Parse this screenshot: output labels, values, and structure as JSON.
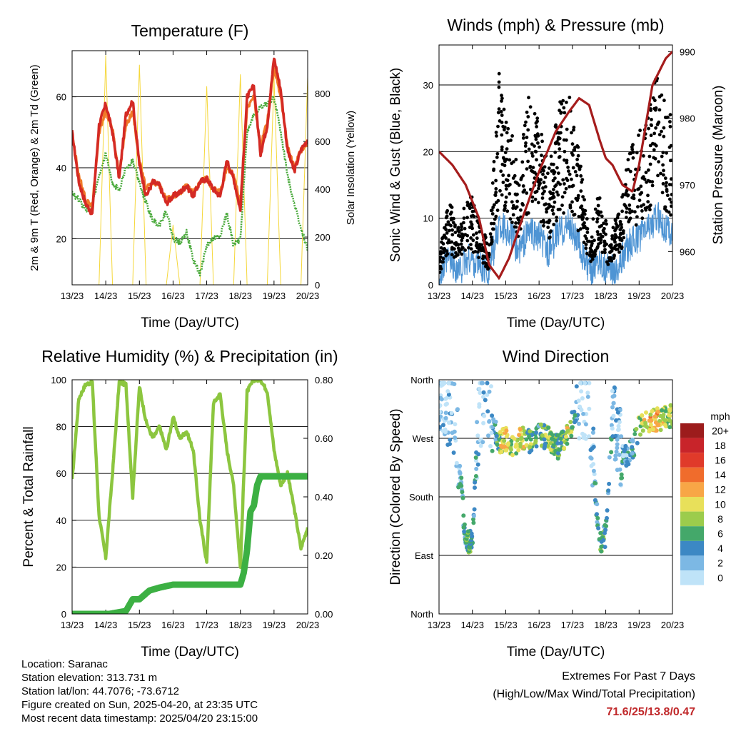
{
  "chart_data": [
    {
      "type": "line",
      "title": "Temperature (F)",
      "xlabel": "Time (Day/UTC)",
      "ylabel": "2m & 9m T (Red, Orange) & 2m Td (Green)",
      "ylabel_right": "Solar Insolation (Yellow)",
      "x_ticks": [
        "13/23",
        "14/23",
        "15/23",
        "16/23",
        "17/23",
        "18/23",
        "19/23",
        "20/23"
      ],
      "ylim": [
        7,
        73
      ],
      "y_ticks": [
        20,
        40,
        60
      ],
      "ylim_right": [
        0,
        980
      ],
      "y_ticks_right": [
        0,
        200,
        400,
        600,
        800
      ],
      "grid": "horizontal",
      "series": [
        {
          "name": "2m T",
          "axis": "left",
          "color": "#d42a24",
          "x": [
            0,
            0.2,
            0.4,
            0.6,
            0.8,
            1.0,
            1.2,
            1.4,
            1.6,
            1.8,
            2.0,
            2.2,
            2.4,
            2.6,
            2.8,
            3.0,
            3.2,
            3.4,
            3.6,
            3.8,
            4.0,
            4.2,
            4.4,
            4.6,
            4.8,
            5.0,
            5.2,
            5.4,
            5.6,
            5.8,
            6.0,
            6.2,
            6.4,
            6.6,
            6.8,
            7.0
          ],
          "values": [
            50,
            36,
            30,
            27,
            52,
            58,
            50,
            37,
            55,
            59,
            41,
            32,
            36,
            35,
            30,
            32,
            33,
            35,
            32,
            36,
            37,
            34,
            32,
            42,
            37,
            28,
            60,
            63,
            44,
            52,
            71,
            62,
            45,
            39,
            45,
            48
          ]
        },
        {
          "name": "9m T",
          "axis": "left",
          "color": "#f07a28",
          "x": [
            0,
            0.2,
            0.4,
            0.6,
            0.8,
            1.0,
            1.2,
            1.4,
            1.6,
            1.8,
            2.0,
            2.2,
            2.4,
            2.6,
            2.8,
            3.0,
            3.2,
            3.4,
            3.6,
            3.8,
            4.0,
            4.2,
            4.4,
            4.6,
            4.8,
            5.0,
            5.2,
            5.4,
            5.6,
            5.8,
            6.0,
            6.2,
            6.4,
            6.6,
            6.8,
            7.0
          ],
          "values": [
            49,
            38,
            31,
            29,
            50,
            56,
            51,
            38,
            52,
            56,
            42,
            34,
            36,
            35,
            31,
            32,
            33,
            35,
            33,
            36,
            37,
            34,
            33,
            40,
            38,
            30,
            57,
            60,
            46,
            53,
            68,
            60,
            46,
            40,
            45,
            47
          ]
        },
        {
          "name": "2m Td",
          "axis": "left",
          "color": "#4aaa3c",
          "x": [
            0,
            0.2,
            0.4,
            0.6,
            0.8,
            1.0,
            1.2,
            1.4,
            1.6,
            1.8,
            2.0,
            2.2,
            2.4,
            2.6,
            2.8,
            3.0,
            3.2,
            3.4,
            3.6,
            3.8,
            4.0,
            4.2,
            4.4,
            4.6,
            4.8,
            5.0,
            5.2,
            5.4,
            5.6,
            5.8,
            6.0,
            6.2,
            6.4,
            6.6,
            6.8,
            7.0
          ],
          "values": [
            33,
            31,
            28,
            30,
            37,
            44,
            35,
            34,
            40,
            42,
            36,
            30,
            25,
            24,
            28,
            20,
            19,
            22,
            14,
            10,
            18,
            20,
            21,
            27,
            18,
            20,
            50,
            55,
            57,
            58,
            60,
            50,
            38,
            30,
            23,
            17
          ]
        },
        {
          "name": "Solar Insolation",
          "axis": "right",
          "color": "#f5d73a",
          "x": [
            0,
            0.5,
            0.8,
            1.0,
            1.2,
            1.5,
            1.8,
            2.0,
            2.2,
            2.5,
            2.8,
            3.0,
            3.2,
            3.5,
            3.8,
            4.0,
            4.2,
            4.5,
            4.8,
            5.0,
            5.2,
            5.5,
            5.8,
            6.0,
            6.2,
            6.5,
            6.8,
            7.0
          ],
          "values": [
            0,
            0,
            0,
            960,
            0,
            0,
            0,
            920,
            0,
            0,
            0,
            250,
            0,
            0,
            0,
            830,
            0,
            0,
            0,
            880,
            0,
            0,
            0,
            870,
            0,
            0,
            0,
            870
          ]
        }
      ]
    },
    {
      "type": "scatter",
      "title": "Winds (mph) & Pressure (mb)",
      "xlabel": "Time (Day/UTC)",
      "ylabel": "Sonic Wind & Gust (Blue, Black)",
      "ylabel_right": "Station Pressure (Maroon)",
      "x_ticks": [
        "13/23",
        "14/23",
        "15/23",
        "16/23",
        "17/23",
        "18/23",
        "19/23",
        "20/23"
      ],
      "ylim": [
        0,
        36
      ],
      "y_ticks": [
        0,
        10,
        20,
        30
      ],
      "ylim_right": [
        955,
        991
      ],
      "y_ticks_right": [
        960,
        970,
        980,
        990
      ],
      "grid": "horizontal",
      "series": [
        {
          "name": "Gust",
          "axis": "left",
          "color": "#000000",
          "x": [
            0,
            0.3,
            0.6,
            0.9,
            1.2,
            1.5,
            1.8,
            2.1,
            2.4,
            2.7,
            3.0,
            3.3,
            3.6,
            3.9,
            4.2,
            4.5,
            4.8,
            5.1,
            5.4,
            5.7,
            6.0,
            6.3,
            6.6,
            6.9
          ],
          "values": [
            3,
            9,
            6,
            10,
            7,
            4,
            22,
            18,
            12,
            20,
            17,
            12,
            19,
            20,
            14,
            5,
            10,
            5,
            8,
            14,
            16,
            20,
            22,
            18
          ]
        },
        {
          "name": "Sonic Wind",
          "axis": "left",
          "color": "#4e94d4",
          "x": [
            0,
            0.3,
            0.6,
            0.9,
            1.2,
            1.5,
            1.8,
            2.1,
            2.4,
            2.7,
            3.0,
            3.3,
            3.6,
            3.9,
            4.2,
            4.5,
            4.8,
            5.1,
            5.4,
            5.7,
            6.0,
            6.3,
            6.6,
            6.9
          ],
          "values": [
            1,
            4,
            2,
            4,
            3,
            2,
            9,
            8,
            5,
            8,
            7,
            5,
            8,
            9,
            6,
            2,
            4,
            2,
            3,
            6,
            7,
            9,
            10,
            8
          ]
        },
        {
          "name": "Station Pressure",
          "axis": "right",
          "color": "#a51c1c",
          "x": [
            0,
            0.4,
            0.8,
            1.2,
            1.5,
            1.8,
            2.1,
            2.5,
            3.0,
            3.5,
            3.9,
            4.2,
            4.5,
            4.8,
            5.0,
            5.2,
            5.5,
            5.8,
            6.0,
            6.2,
            6.4,
            6.6,
            6.8,
            7.0
          ],
          "values": [
            975,
            973,
            970,
            965,
            958,
            956,
            959,
            965,
            972,
            978,
            981,
            983,
            982,
            977,
            974,
            973,
            970,
            969,
            973,
            979,
            985,
            987,
            989,
            990
          ]
        }
      ]
    },
    {
      "type": "line",
      "title": "Relative Humidity (%) & Precipitation (in)",
      "xlabel": "Time (Day/UTC)",
      "ylabel": "Percent & Total Rainfall",
      "x_ticks": [
        "13/23",
        "14/23",
        "15/23",
        "16/23",
        "17/23",
        "18/23",
        "19/23",
        "20/23"
      ],
      "ylim": [
        0,
        100
      ],
      "y_ticks": [
        0,
        20,
        40,
        60,
        80,
        100
      ],
      "ylim_right": [
        0,
        0.8
      ],
      "y_ticks_right": [
        "0.00",
        "0.20",
        "0.40",
        "0.60",
        "0.80"
      ],
      "grid": "horizontal",
      "series": [
        {
          "name": "Relative Humidity",
          "axis": "left",
          "color": "#8cc63f",
          "x": [
            0,
            0.2,
            0.4,
            0.6,
            0.8,
            1.0,
            1.2,
            1.4,
            1.6,
            1.8,
            2.0,
            2.2,
            2.4,
            2.6,
            2.8,
            3.0,
            3.2,
            3.4,
            3.6,
            3.8,
            4.0,
            4.2,
            4.4,
            4.6,
            4.8,
            5.0,
            5.2,
            5.4,
            5.6,
            5.8,
            6.0,
            6.2,
            6.4,
            6.6,
            6.8,
            7.0
          ],
          "values": [
            57,
            92,
            98,
            99,
            42,
            24,
            60,
            99,
            98,
            50,
            97,
            82,
            75,
            80,
            70,
            84,
            75,
            78,
            70,
            40,
            22,
            90,
            94,
            70,
            55,
            20,
            95,
            100,
            100,
            95,
            70,
            55,
            60,
            45,
            28,
            37
          ]
        },
        {
          "name": "Total Precipitation",
          "axis": "right",
          "color": "#3cb043",
          "x": [
            0,
            0.8,
            1.1,
            1.6,
            1.8,
            2.0,
            2.3,
            2.6,
            3.0,
            3.5,
            4.0,
            4.5,
            5.0,
            5.1,
            5.2,
            5.3,
            5.4,
            5.5,
            5.6,
            5.8,
            6.0,
            6.5,
            7.0
          ],
          "values": [
            0,
            0,
            0,
            0.01,
            0.05,
            0.05,
            0.08,
            0.09,
            0.1,
            0.1,
            0.1,
            0.1,
            0.1,
            0.14,
            0.22,
            0.35,
            0.37,
            0.44,
            0.47,
            0.47,
            0.47,
            0.47,
            0.47
          ]
        }
      ]
    },
    {
      "type": "scatter",
      "title": "Wind Direction",
      "xlabel": "Time (Day/UTC)",
      "ylabel": "Direction (Colored By Speed)",
      "x_ticks": [
        "13/23",
        "14/23",
        "15/23",
        "16/23",
        "17/23",
        "18/23",
        "19/23",
        "20/23"
      ],
      "y_ticks": [
        "North",
        "East",
        "South",
        "West",
        "North"
      ],
      "y_ticks_deg": [
        0,
        90,
        180,
        270,
        360
      ],
      "ylim": [
        0,
        360
      ],
      "grid": "horizontal",
      "colorbar": {
        "label": "mph",
        "levels": [
          "20+",
          "18",
          "16",
          "14",
          "12",
          "10",
          "8",
          "6",
          "4",
          "2",
          "0"
        ],
        "colors": [
          "#9c1c1c",
          "#c8242a",
          "#e03a2a",
          "#f06c2c",
          "#f8a646",
          "#e8e05a",
          "#9ccc4c",
          "#44a86a",
          "#3c88c4",
          "#7cb8e4",
          "#bfe3f8"
        ]
      },
      "series": [
        {
          "name": "Direction",
          "x": [
            0.1,
            0.3,
            0.5,
            0.8,
            1.0,
            1.2,
            1.5,
            1.8,
            2.0,
            2.2,
            2.5,
            2.8,
            3.0,
            3.3,
            3.6,
            3.9,
            4.2,
            4.5,
            4.8,
            5.0,
            5.2,
            5.5,
            5.8,
            6.0,
            6.3,
            6.6,
            6.9
          ],
          "values": [
            320,
            315,
            300,
            110,
            115,
            320,
            310,
            265,
            270,
            260,
            270,
            265,
            275,
            270,
            255,
            280,
            330,
            320,
            110,
            120,
            315,
            240,
            250,
            290,
            295,
            300,
            305
          ],
          "speed": [
            2,
            2,
            3,
            6,
            7,
            2,
            2,
            8,
            12,
            9,
            10,
            7,
            6,
            9,
            7,
            10,
            2,
            2,
            6,
            7,
            3,
            4,
            5,
            10,
            12,
            11,
            9
          ]
        }
      ]
    }
  ],
  "footer": {
    "location": "Location: Saranac",
    "elevation": "Station elevation: 313.731 m",
    "latlon": "Station lat/lon: 44.7076; -73.6712",
    "created": "Figure created on Sun, 2025-04-20, at 23:35 UTC",
    "latest": "Most recent data timestamp: 2025/04/20 23:15:00",
    "extremes_title": "Extremes For Past 7 Days",
    "extremes_subtitle": "(High/Low/Max Wind/Total Precipitation)",
    "extremes_values": "71.6/25/13.8/0.47"
  }
}
